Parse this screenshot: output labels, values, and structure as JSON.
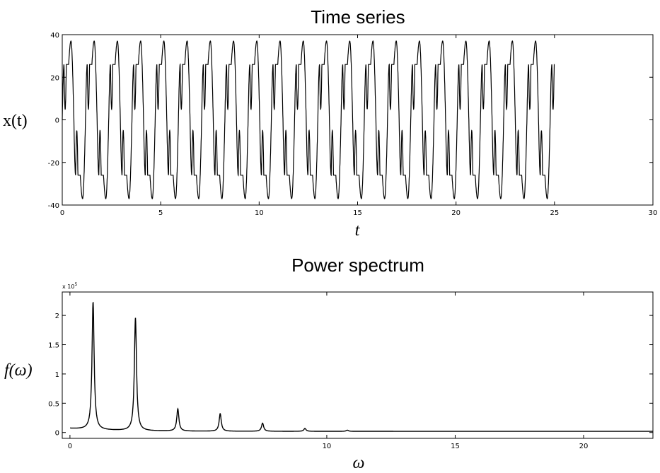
{
  "chart_data": [
    {
      "type": "line",
      "title": "Time series",
      "xlabel": "t",
      "ylabel": "x(t)",
      "xlim": [
        0,
        30
      ],
      "ylim": [
        -40,
        40
      ],
      "x_ticks": [
        0,
        5,
        10,
        15,
        20,
        25,
        30
      ],
      "y_ticks": [
        -40,
        -20,
        0,
        20,
        40
      ],
      "grid": false,
      "series": [
        {
          "color": "#000000",
          "t_range": [
            0,
            25
          ],
          "description_values": {
            "fundamental_period": 1.18,
            "peak_max": 37,
            "peak_min": -37,
            "upper_lobe_max": 26,
            "upper_lobe_min": 5,
            "lower_lobe_max": -5,
            "lower_lobe_min": -26
          }
        }
      ]
    },
    {
      "type": "line",
      "title": "Power spectrum",
      "xlabel": "ω",
      "ylabel": "f(ω)",
      "y_multiplier": "x 10",
      "y_multiplier_exponent": "5",
      "xlim": [
        -0.3,
        22.7
      ],
      "ylim": [
        -0.1,
        2.4
      ],
      "x_ticks": [
        0,
        10,
        15,
        20
      ],
      "y_ticks": [
        0,
        0.5,
        1,
        1.5,
        2
      ],
      "y_tick_labels": [
        "0",
        "0.5",
        "1",
        "1.5",
        "2"
      ],
      "grid": false,
      "series": [
        {
          "color": "#000000",
          "baseline": 0.02,
          "peaks": [
            {
              "omega": 0.9,
              "value": 2.18
            },
            {
              "omega": 2.55,
              "value": 1.93
            },
            {
              "omega": 4.2,
              "value": 0.38
            },
            {
              "omega": 5.85,
              "value": 0.3
            },
            {
              "omega": 7.5,
              "value": 0.14
            },
            {
              "omega": 9.15,
              "value": 0.05
            },
            {
              "omega": 10.8,
              "value": 0.02
            }
          ]
        }
      ]
    }
  ]
}
